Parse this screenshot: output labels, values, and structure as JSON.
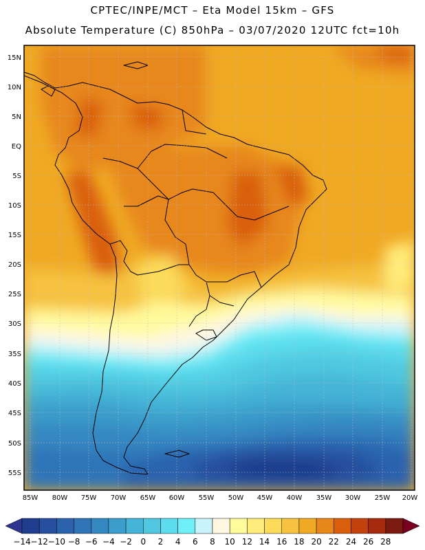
{
  "header": {
    "line1": "CPTEC/INPE/MCT –  Eta Model 15km – GFS",
    "line2": "Absolute Temperature (C) 850hPa – 03/07/2020 12UTC fct=10h"
  },
  "lat_ticks": [
    "15N",
    "10N",
    "5N",
    "EQ",
    "5S",
    "10S",
    "15S",
    "20S",
    "25S",
    "30S",
    "35S",
    "40S",
    "45S",
    "50S",
    "55S"
  ],
  "lon_ticks": [
    "85W",
    "80W",
    "75W",
    "70W",
    "65W",
    "60W",
    "55W",
    "50W",
    "45W",
    "40W",
    "35W",
    "30W",
    "25W",
    "20W"
  ],
  "colorbar": {
    "labels": [
      "−14",
      "−12",
      "−10",
      "−8",
      "−6",
      "−4",
      "−2",
      "0",
      "2",
      "4",
      "6",
      "8",
      "10",
      "12",
      "14",
      "16",
      "18",
      "20",
      "22",
      "24",
      "26",
      "28"
    ],
    "colors": [
      "#1f3d8c",
      "#264f9e",
      "#2b62ad",
      "#2f75b8",
      "#3488c2",
      "#3b9dcb",
      "#45b4d6",
      "#50c8e0",
      "#5cdced",
      "#6feff7",
      "#c8f3fb",
      "#fff7e2",
      "#fffa9c",
      "#ffec7c",
      "#fcda5a",
      "#f6c23f",
      "#f0a924",
      "#e7871a",
      "#d95f0f",
      "#c2410c",
      "#a52a0e",
      "#7b1a10"
    ],
    "under_color": "#2c3690",
    "over_color": "#7a0020"
  }
}
